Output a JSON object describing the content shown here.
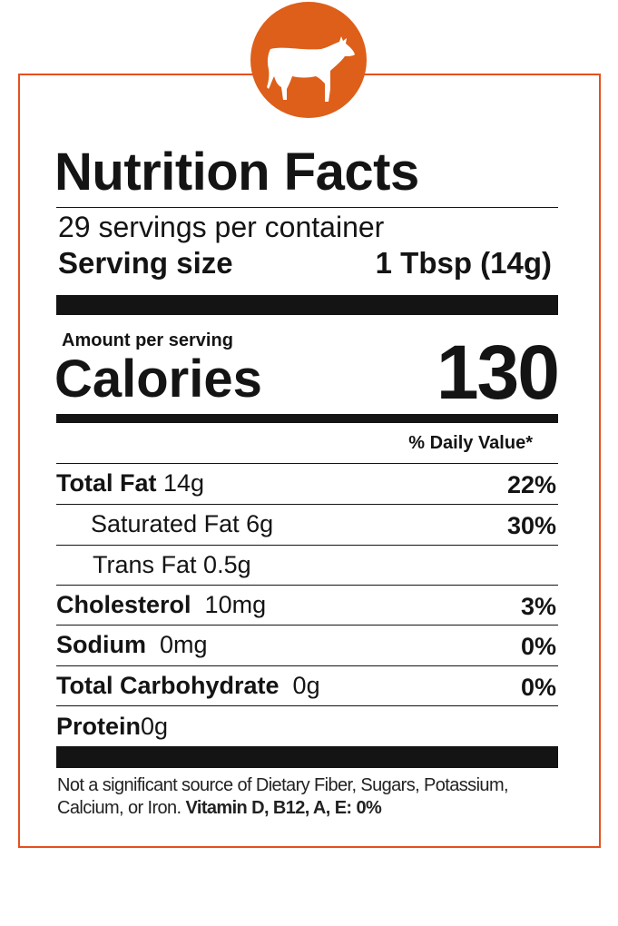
{
  "colors": {
    "accent": "#e5501e",
    "badge": "#dd5f1a",
    "text": "#141414"
  },
  "badge_icon": "cow-icon",
  "title": "Nutrition Facts",
  "servings": "29 servings per container",
  "serving_size": {
    "label": "Serving size",
    "value": "1 Tbsp (14g)"
  },
  "amount_per_serving": "Amount per serving",
  "calories": {
    "label": "Calories",
    "value": "130"
  },
  "dv_header": "% Daily Value*",
  "nutrients": [
    {
      "name": "Total Fat",
      "amount": "14g",
      "dv": "22%"
    },
    {
      "name": "Saturated Fat",
      "amount": "6g",
      "dv": "30%"
    },
    {
      "name": "Trans Fat",
      "amount": "0.5g",
      "dv": ""
    },
    {
      "name": "Cholesterol",
      "amount": "10mg",
      "dv": "3%"
    },
    {
      "name": "Sodium",
      "amount": "0mg",
      "dv": "0%"
    },
    {
      "name": "Total Carbohydrate",
      "amount": "0g",
      "dv": "0%"
    },
    {
      "name": "Protein",
      "amount": "0g",
      "dv": ""
    }
  ],
  "footnote": {
    "text": "Not a significant source of Dietary Fiber, Sugars, Potassium, Calcium, or Iron.",
    "bold": "Vitamin D, B12, A, E: 0%"
  }
}
